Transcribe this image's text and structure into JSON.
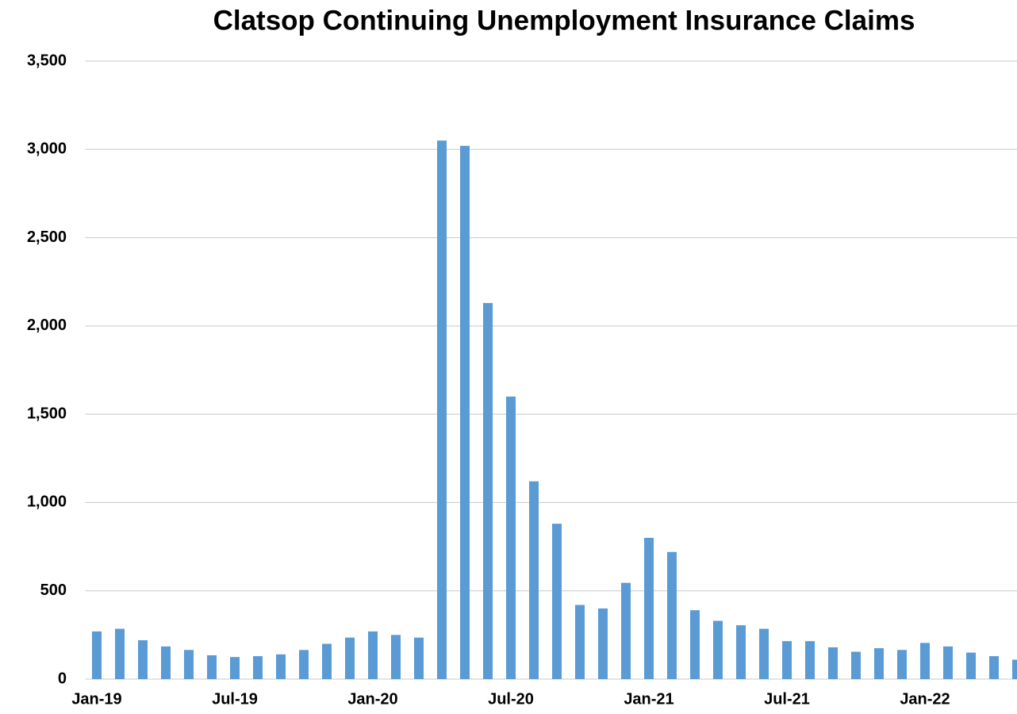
{
  "chart_data": {
    "type": "bar",
    "title": "Clatsop Continuing Unemployment Insurance Claims",
    "categories": [
      "Jan-19",
      null,
      null,
      null,
      null,
      null,
      "Jul-19",
      null,
      null,
      null,
      null,
      null,
      "Jan-20",
      null,
      null,
      null,
      null,
      null,
      "Jul-20",
      null,
      null,
      null,
      null,
      null,
      "Jan-21",
      null,
      null,
      null,
      null,
      null,
      "Jul-21",
      null,
      null,
      null,
      null,
      null,
      "Jan-22",
      null,
      null,
      null,
      null
    ],
    "values": [
      270,
      285,
      220,
      185,
      165,
      135,
      125,
      130,
      140,
      165,
      200,
      235,
      270,
      250,
      235,
      3050,
      3020,
      2130,
      1600,
      1120,
      880,
      420,
      400,
      545,
      800,
      720,
      390,
      330,
      305,
      285,
      215,
      215,
      180,
      155,
      175,
      165,
      205,
      185,
      150,
      130,
      110
    ],
    "color": "#5b9bd5",
    "ylim": [
      0,
      3500
    ],
    "yticks": [
      0,
      500,
      {
        "value": 1000,
        "label": "1,000"
      },
      {
        "value": 1500,
        "label": "1,500"
      },
      {
        "value": 2000,
        "label": "2,000"
      },
      {
        "value": 2500,
        "label": "2,500"
      },
      {
        "value": 3000,
        "label": "3,000"
      },
      {
        "value": 3500,
        "label": "3,500"
      }
    ],
    "grid": true
  }
}
